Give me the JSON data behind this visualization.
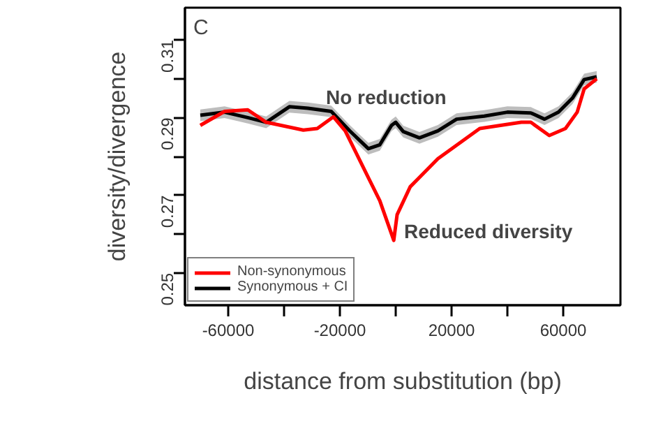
{
  "chart_data": {
    "type": "line",
    "xlabel": "distance from substitution (bp)",
    "ylabel": "diversity/divergence",
    "annotations": [
      "C",
      "No reduction",
      "Reduced diversity"
    ],
    "xlim": [
      -75500,
      80500
    ],
    "ylim": [
      0.2417,
      0.3183
    ],
    "xticks": [
      -60000,
      {
        "value": -40000,
        "label": null
      },
      -20000,
      {
        "value": 0,
        "label": null
      },
      20000,
      {
        "value": 40000,
        "label": null
      },
      60000
    ],
    "yticks": [
      0.25,
      {
        "value": 0.26,
        "label": null
      },
      0.27,
      {
        "value": 0.28,
        "label": null
      },
      0.29,
      {
        "value": 0.3,
        "label": null
      },
      0.31
    ],
    "legend": "bottom left",
    "grid": false,
    "line_style": "solid",
    "series": [
      {
        "name": "Non-synonymous",
        "color": "#ff0000",
        "x": [
          -70000,
          -61300,
          -53000,
          -46400,
          -33100,
          -28100,
          -22300,
          -18100,
          -11500,
          -5700,
          -700,
          500,
          5200,
          15100,
          30100,
          45000,
          48400,
          55000,
          60800,
          65000,
          67500,
          72000
        ],
        "values": [
          0.288,
          0.2916,
          0.292,
          0.2888,
          0.2868,
          0.2872,
          0.2902,
          0.2866,
          0.277,
          0.2686,
          0.2584,
          0.265,
          0.2722,
          0.2794,
          0.2872,
          0.2888,
          0.2888,
          0.2854,
          0.2872,
          0.2914,
          0.2974,
          0.3
        ]
      },
      {
        "name": "Synonymous + CI",
        "color": "#000000",
        "x": [
          -70000,
          -61300,
          -53000,
          -46400,
          -38100,
          -31400,
          -23100,
          -16500,
          -9800,
          -5700,
          -1500,
          0,
          2700,
          8500,
          15100,
          21800,
          31700,
          40000,
          48400,
          53300,
          58300,
          63300,
          67500,
          72000
        ],
        "values": [
          0.2906,
          0.2914,
          0.29,
          0.2888,
          0.2928,
          0.2924,
          0.2916,
          0.2866,
          0.282,
          0.283,
          0.288,
          0.2888,
          0.2864,
          0.2848,
          0.2866,
          0.2896,
          0.2904,
          0.2914,
          0.2912,
          0.2896,
          0.2914,
          0.295,
          0.2998,
          0.3005
        ],
        "lower": [
          0.2891,
          0.2899,
          0.2885,
          0.2873,
          0.2913,
          0.2909,
          0.2901,
          0.2851,
          0.2805,
          0.2815,
          0.2865,
          0.2873,
          0.2849,
          0.2833,
          0.2851,
          0.2881,
          0.2889,
          0.2899,
          0.2897,
          0.2881,
          0.2899,
          0.2935,
          0.2983,
          0.299
        ],
        "upper": [
          0.2921,
          0.2929,
          0.2915,
          0.2903,
          0.2943,
          0.2939,
          0.2931,
          0.2881,
          0.2835,
          0.2845,
          0.2895,
          0.2903,
          0.2879,
          0.2863,
          0.2881,
          0.2911,
          0.2919,
          0.2929,
          0.2927,
          0.2911,
          0.2929,
          0.2965,
          0.3013,
          0.302
        ]
      }
    ]
  }
}
